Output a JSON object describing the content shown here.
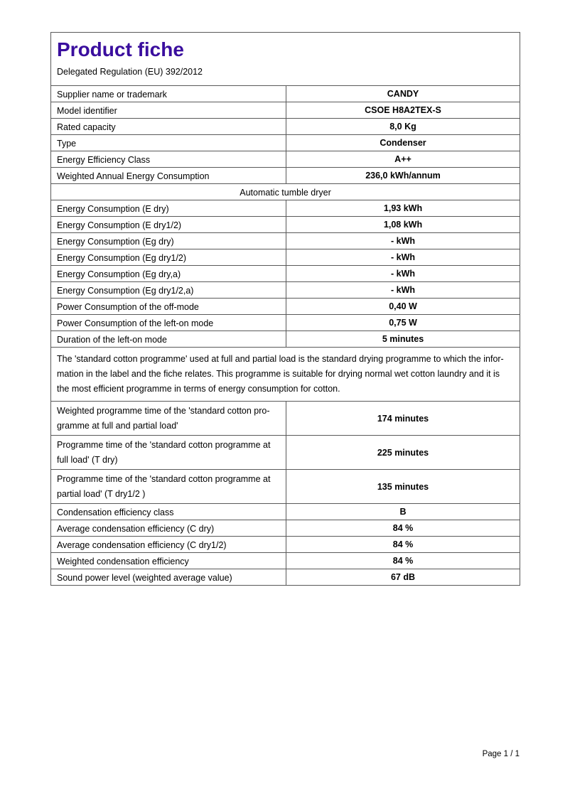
{
  "page": {
    "title": "Product fiche",
    "subtitle": "Delegated Regulation (EU) 392/2012",
    "footer": "Page 1 / 1",
    "title_color": "#3a0e9e",
    "border_color": "#595959"
  },
  "table": {
    "rows": [
      {
        "label": "Supplier name or trademark",
        "value": "CANDY"
      },
      {
        "label": "Model identifier",
        "value": "CSOE H8A2TEX-S"
      },
      {
        "label": "Rated capacity",
        "value": "8,0 Kg"
      },
      {
        "label": "Type",
        "value": "Condenser"
      },
      {
        "label": "Energy Efficiency Class",
        "value": "A++"
      },
      {
        "label": "Weighted Annual Energy Consumption",
        "value": "236,0 kWh/annum"
      },
      {
        "label": "Automatic tumble dryer"
      },
      {
        "label": "Energy Consumption (E dry)",
        "value": "1,93 kWh"
      },
      {
        "label": "Energy Consumption (E dry1/2)",
        "value": "1,08 kWh"
      },
      {
        "label": "Energy Consumption (Eg dry)",
        "value": "- kWh"
      },
      {
        "label": "Energy Consumption (Eg dry1/2)",
        "value": "- kWh"
      },
      {
        "label": "Energy Consumption (Eg dry,a)",
        "value": "- kWh"
      },
      {
        "label": "Energy Consumption (Eg dry1/2,a)",
        "value": "- kWh"
      },
      {
        "label": "Power Consumption of the off-mode",
        "value": "0,40 W"
      },
      {
        "label": "Power Consumption of the left-on mode",
        "value": "0,75 W"
      },
      {
        "label": "Duration of the left-on mode",
        "value": "5 minutes"
      },
      {
        "lines": [
          "The 'standard cotton programme' used at full and partial load is the standard drying programme to which the infor-",
          "mation in the label and the fiche relates. This programme is suitable for drying normal wet cotton laundry and it is",
          "the most efficient programme in terms of energy consumption for cotton."
        ]
      },
      {
        "label_lines": [
          "Weighted programme time of the 'standard cotton pro-",
          "gramme at full and partial load'"
        ],
        "value": "174 minutes"
      },
      {
        "label_lines": [
          "Programme time of the 'standard cotton programme at",
          "full load' (T dry)"
        ],
        "value": "225 minutes"
      },
      {
        "label_lines": [
          "Programme time of the 'standard cotton programme at",
          "partial load' (T dry1/2 )"
        ],
        "value": "135 minutes"
      },
      {
        "label": "Condensation efficiency class",
        "value": "B"
      },
      {
        "label": "Average condensation efficiency (C dry)",
        "value": "84 %"
      },
      {
        "label": "Average condensation efficiency (C dry1/2)",
        "value": "84 %"
      },
      {
        "label": "Weighted condensation efficiency",
        "value": "84 %"
      },
      {
        "label": "Sound power level (weighted average value)",
        "value": "67 dB"
      }
    ]
  }
}
